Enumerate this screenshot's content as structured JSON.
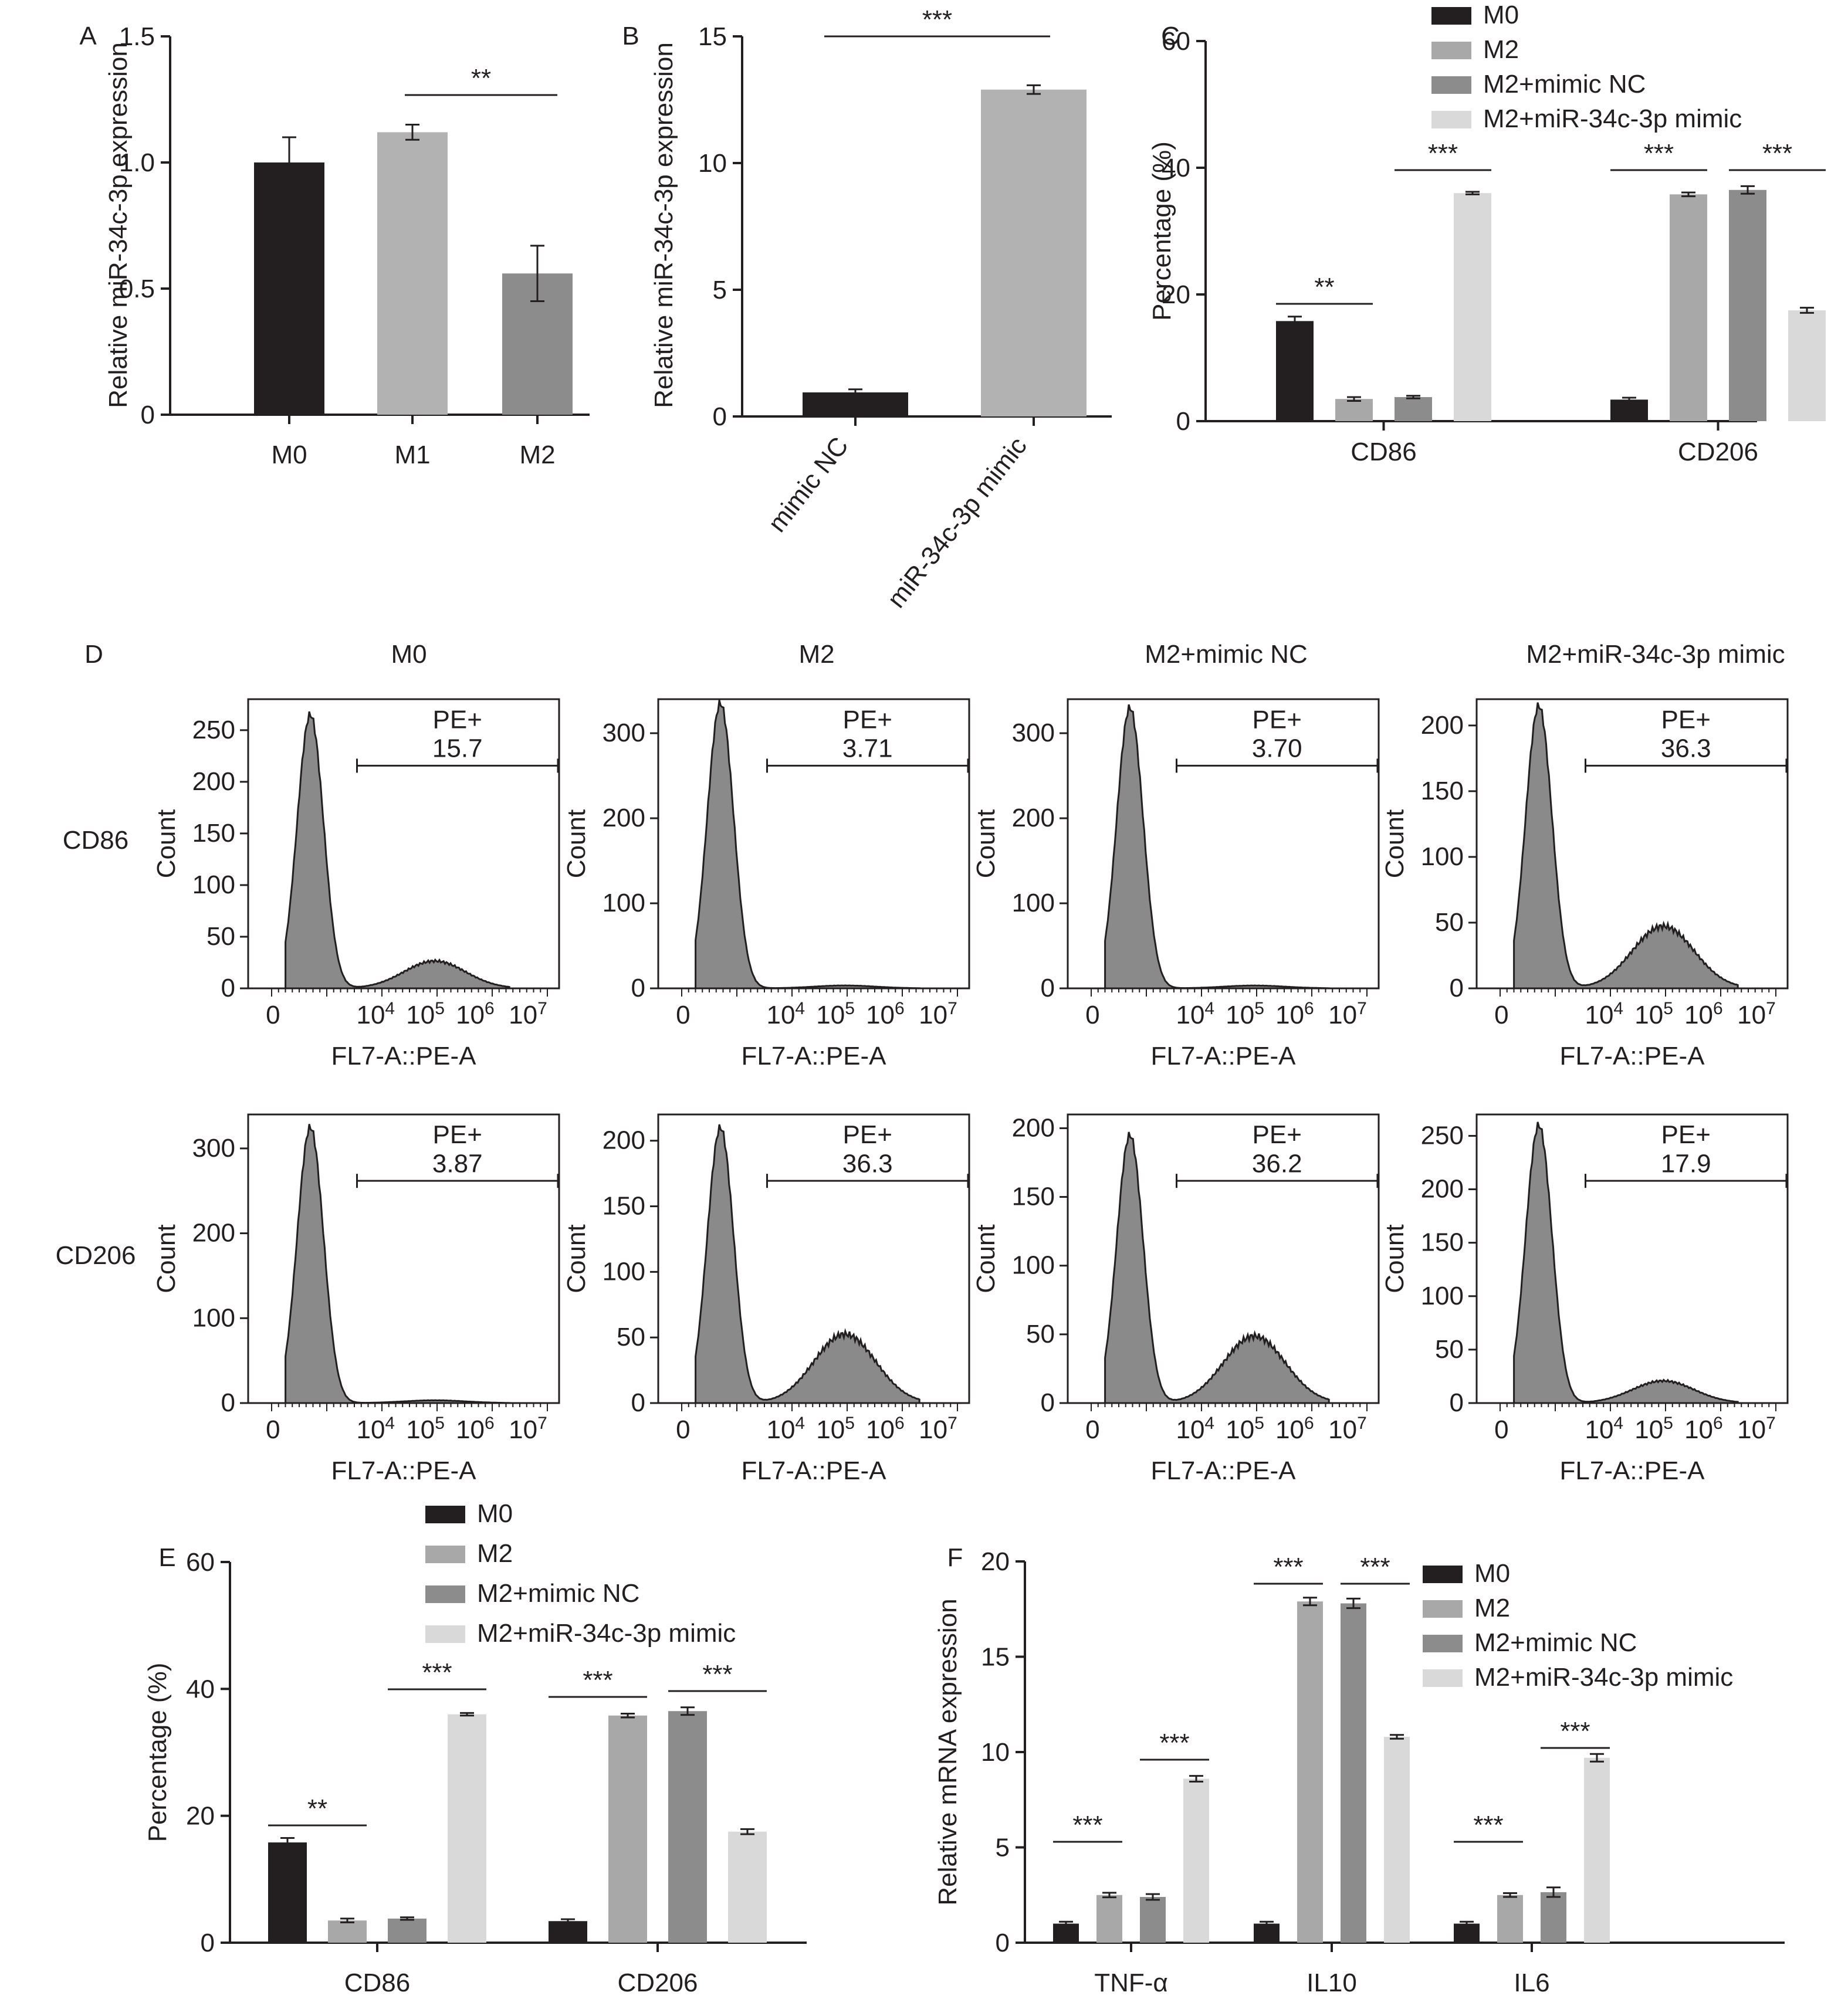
{
  "colors": {
    "M0": "#231f20",
    "M1": "#b2b2b2",
    "M2": "#a8a8a8",
    "M2NC": "#8c8c8c",
    "M2mimic": "#d9d9d9",
    "hist": "#8a8a8a",
    "axis": "#231f20"
  },
  "panels": {
    "A": {
      "letter": "A",
      "ylabel": "Relative miR-34c-3p expression"
    },
    "B": {
      "letter": "B",
      "ylabel": "Relative miR-34c-3p expression"
    },
    "C": {
      "letter": "C",
      "ylabel": "Percentage (%)"
    },
    "D": {
      "letter": "D",
      "col_titles": [
        "M0",
        "M2",
        "M2+mimic NC",
        "M2+miR-34c-3p mimic"
      ],
      "row_labels": [
        "CD86",
        "CD206"
      ],
      "ylabel": "Count",
      "xlabel": "FL7-A::PE-A",
      "gate_label": "PE+"
    },
    "E": {
      "letter": "E",
      "ylabel": "Percentage (%)"
    },
    "F": {
      "letter": "F",
      "ylabel": "Relative mRNA expression"
    }
  },
  "legend": {
    "items": [
      "M0",
      "M2",
      "M2+mimic NC",
      "M2+miR-34c-3p mimic"
    ]
  },
  "chart_data": [
    {
      "panel": "A",
      "type": "bar",
      "categories": [
        "M0",
        "M1",
        "M2"
      ],
      "values": [
        1.0,
        1.12,
        0.56
      ],
      "errors": [
        0.1,
        0.03,
        0.11
      ],
      "ylabel": "Relative miR-34c-3p expression",
      "ylim": [
        0,
        1.5
      ],
      "yticks": [
        "0",
        "0.5",
        "1.0",
        "1.5"
      ],
      "significance": [
        {
          "between": [
            1,
            2
          ],
          "label": "**"
        }
      ]
    },
    {
      "panel": "B",
      "type": "bar",
      "categories": [
        "mimic NC",
        "miR-34c-3p mimic"
      ],
      "values": [
        0.95,
        12.9
      ],
      "errors": [
        0.12,
        0.17
      ],
      "ylabel": "Relative miR-34c-3p expression",
      "ylim": [
        0,
        15
      ],
      "yticks": [
        "0",
        "5",
        "10",
        "15"
      ],
      "significance": [
        {
          "between": [
            0,
            1
          ],
          "label": "***"
        }
      ]
    },
    {
      "panel": "C",
      "type": "bar",
      "categories": [
        "CD86",
        "CD206"
      ],
      "ylabel": "Percentage (%)",
      "ylim": [
        0,
        60
      ],
      "yticks": [
        "0",
        "20",
        "40",
        "60"
      ],
      "series": [
        {
          "name": "M0",
          "values": [
            15.8,
            3.4
          ],
          "errors": [
            0.7,
            0.3
          ]
        },
        {
          "name": "M2",
          "values": [
            3.5,
            35.8
          ],
          "errors": [
            0.3,
            0.3
          ]
        },
        {
          "name": "M2+mimic NC",
          "values": [
            3.8,
            36.5
          ],
          "errors": [
            0.2,
            0.6
          ]
        },
        {
          "name": "M2+miR-34c-3p mimic",
          "values": [
            36.0,
            17.5
          ],
          "errors": [
            0.2,
            0.4
          ]
        }
      ],
      "significance": [
        {
          "group": 0,
          "between": [
            0,
            1
          ],
          "label": "**"
        },
        {
          "group": 0,
          "between": [
            2,
            3
          ],
          "label": "***"
        },
        {
          "group": 1,
          "between": [
            0,
            1
          ],
          "label": "***"
        },
        {
          "group": 1,
          "between": [
            2,
            3
          ],
          "label": "***"
        }
      ]
    },
    {
      "panel": "E",
      "type": "bar",
      "categories": [
        "CD86",
        "CD206"
      ],
      "ylabel": "Percentage (%)",
      "ylim": [
        0,
        60
      ],
      "yticks": [
        "0",
        "20",
        "40",
        "60"
      ],
      "series": [
        {
          "name": "M0",
          "values": [
            15.8,
            3.4
          ],
          "errors": [
            0.7,
            0.3
          ]
        },
        {
          "name": "M2",
          "values": [
            3.5,
            35.8
          ],
          "errors": [
            0.3,
            0.3
          ]
        },
        {
          "name": "M2+mimic NC",
          "values": [
            3.8,
            36.5
          ],
          "errors": [
            0.2,
            0.6
          ]
        },
        {
          "name": "M2+miR-34c-3p mimic",
          "values": [
            36.0,
            17.5
          ],
          "errors": [
            0.2,
            0.4
          ]
        }
      ],
      "significance": [
        {
          "group": 0,
          "between": [
            0,
            1
          ],
          "label": "**"
        },
        {
          "group": 0,
          "between": [
            2,
            3
          ],
          "label": "***"
        },
        {
          "group": 1,
          "between": [
            0,
            1
          ],
          "label": "***"
        },
        {
          "group": 1,
          "between": [
            2,
            3
          ],
          "label": "***"
        }
      ]
    },
    {
      "panel": "F",
      "type": "bar",
      "categories": [
        "TNF-α",
        "IL10",
        "IL6"
      ],
      "ylabel": "Relative mRNA expression",
      "ylim": [
        0,
        20
      ],
      "yticks": [
        "0",
        "5",
        "10",
        "15",
        "20"
      ],
      "series": [
        {
          "name": "M0",
          "values": [
            1.0,
            1.0,
            1.0
          ],
          "errors": [
            0.1,
            0.1,
            0.1
          ]
        },
        {
          "name": "M2",
          "values": [
            2.5,
            17.9,
            2.5
          ],
          "errors": [
            0.12,
            0.2,
            0.1
          ]
        },
        {
          "name": "M2+mimic NC",
          "values": [
            2.4,
            17.8,
            2.65
          ],
          "errors": [
            0.15,
            0.25,
            0.25
          ]
        },
        {
          "name": "M2+miR-34c-3p mimic",
          "values": [
            8.6,
            10.8,
            9.7
          ],
          "errors": [
            0.15,
            0.1,
            0.2
          ]
        }
      ],
      "significance": [
        {
          "group": 0,
          "between": [
            0,
            1
          ],
          "label": "***"
        },
        {
          "group": 0,
          "between": [
            2,
            3
          ],
          "label": "***"
        },
        {
          "group": 1,
          "between": [
            0,
            1
          ],
          "label": "***"
        },
        {
          "group": 1,
          "between": [
            2,
            3
          ],
          "label": "***"
        },
        {
          "group": 2,
          "between": [
            0,
            1
          ],
          "label": "***"
        },
        {
          "group": 2,
          "between": [
            2,
            3
          ],
          "label": "***"
        }
      ]
    },
    {
      "panel": "D",
      "type": "histogram",
      "xlabel": "FL7-A::PE-A",
      "ylabel": "Count",
      "xticks": [
        "0",
        "10^4",
        "10^5",
        "10^6",
        "10^7"
      ],
      "gate": "PE+",
      "plots": [
        {
          "row": "CD86",
          "col": "M0",
          "gate_value": "15.7",
          "ymax": 280,
          "yticks": [
            "0",
            "50",
            "100",
            "150",
            "200",
            "250"
          ],
          "peak": 265,
          "shoulder": 0.1
        },
        {
          "row": "CD86",
          "col": "M2",
          "gate_value": "3.71",
          "ymax": 340,
          "yticks": [
            "0",
            "100",
            "200",
            "300"
          ],
          "peak": 335,
          "shoulder": 0.01
        },
        {
          "row": "CD86",
          "col": "M2+mimic NC",
          "gate_value": "3.70",
          "ymax": 340,
          "yticks": [
            "0",
            "100",
            "200",
            "300"
          ],
          "peak": 330,
          "shoulder": 0.01
        },
        {
          "row": "CD86",
          "col": "M2+miR-34c-3p mimic",
          "gate_value": "36.3",
          "ymax": 220,
          "yticks": [
            "0",
            "50",
            "100",
            "150",
            "200"
          ],
          "peak": 215,
          "shoulder": 0.22
        },
        {
          "row": "CD206",
          "col": "M0",
          "gate_value": "3.87",
          "ymax": 340,
          "yticks": [
            "0",
            "100",
            "200",
            "300"
          ],
          "peak": 325,
          "shoulder": 0.01
        },
        {
          "row": "CD206",
          "col": "M2",
          "gate_value": "36.3",
          "ymax": 220,
          "yticks": [
            "0",
            "50",
            "100",
            "150",
            "200"
          ],
          "peak": 210,
          "shoulder": 0.25
        },
        {
          "row": "CD206",
          "col": "M2+mimic NC",
          "gate_value": "36.2",
          "ymax": 210,
          "yticks": [
            "0",
            "50",
            "100",
            "150",
            "200"
          ],
          "peak": 195,
          "shoulder": 0.25
        },
        {
          "row": "CD206",
          "col": "M2+miR-34c-3p mimic",
          "gate_value": "17.9",
          "ymax": 270,
          "yticks": [
            "0",
            "50",
            "100",
            "150",
            "200",
            "250"
          ],
          "peak": 260,
          "shoulder": 0.08
        }
      ]
    }
  ]
}
